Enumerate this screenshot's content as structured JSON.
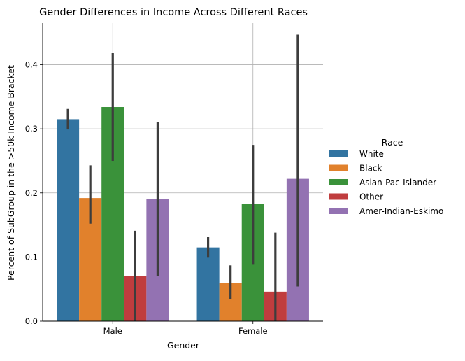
{
  "chart_data": {
    "type": "bar",
    "title": "Gender Differences in Income Across Different Races",
    "xlabel": "Gender",
    "ylabel": "Percent of SubGroup in the >50k Income Bracket",
    "categories": [
      "Male",
      "Female"
    ],
    "ylim": [
      0,
      0.465
    ],
    "yticks": [
      0.0,
      0.1,
      0.2,
      0.3,
      0.4
    ],
    "ytick_labels": [
      "0.0",
      "0.1",
      "0.2",
      "0.3",
      "0.4"
    ],
    "grid": true,
    "legend": {
      "title": "Race",
      "placement": "right"
    },
    "series": [
      {
        "name": "White",
        "color": "#3274a1",
        "values": [
          0.315,
          0.115
        ],
        "ci_low": [
          0.299,
          0.099
        ],
        "ci_high": [
          0.331,
          0.131
        ]
      },
      {
        "name": "Black",
        "color": "#e1812c",
        "values": [
          0.192,
          0.059
        ],
        "ci_low": [
          0.152,
          0.034
        ],
        "ci_high": [
          0.243,
          0.087
        ]
      },
      {
        "name": "Asian-Pac-Islander",
        "color": "#3a923a",
        "values": [
          0.334,
          0.183
        ],
        "ci_low": [
          0.25,
          0.088
        ],
        "ci_high": [
          0.418,
          0.275
        ]
      },
      {
        "name": "Other",
        "color": "#c03d3e",
        "values": [
          0.07,
          0.046
        ],
        "ci_low": [
          0.0,
          0.0
        ],
        "ci_high": [
          0.141,
          0.138
        ]
      },
      {
        "name": "Amer-Indian-Eskimo",
        "color": "#9372b2",
        "values": [
          0.19,
          0.222
        ],
        "ci_low": [
          0.071,
          0.054
        ],
        "ci_high": [
          0.311,
          0.447
        ]
      }
    ]
  }
}
